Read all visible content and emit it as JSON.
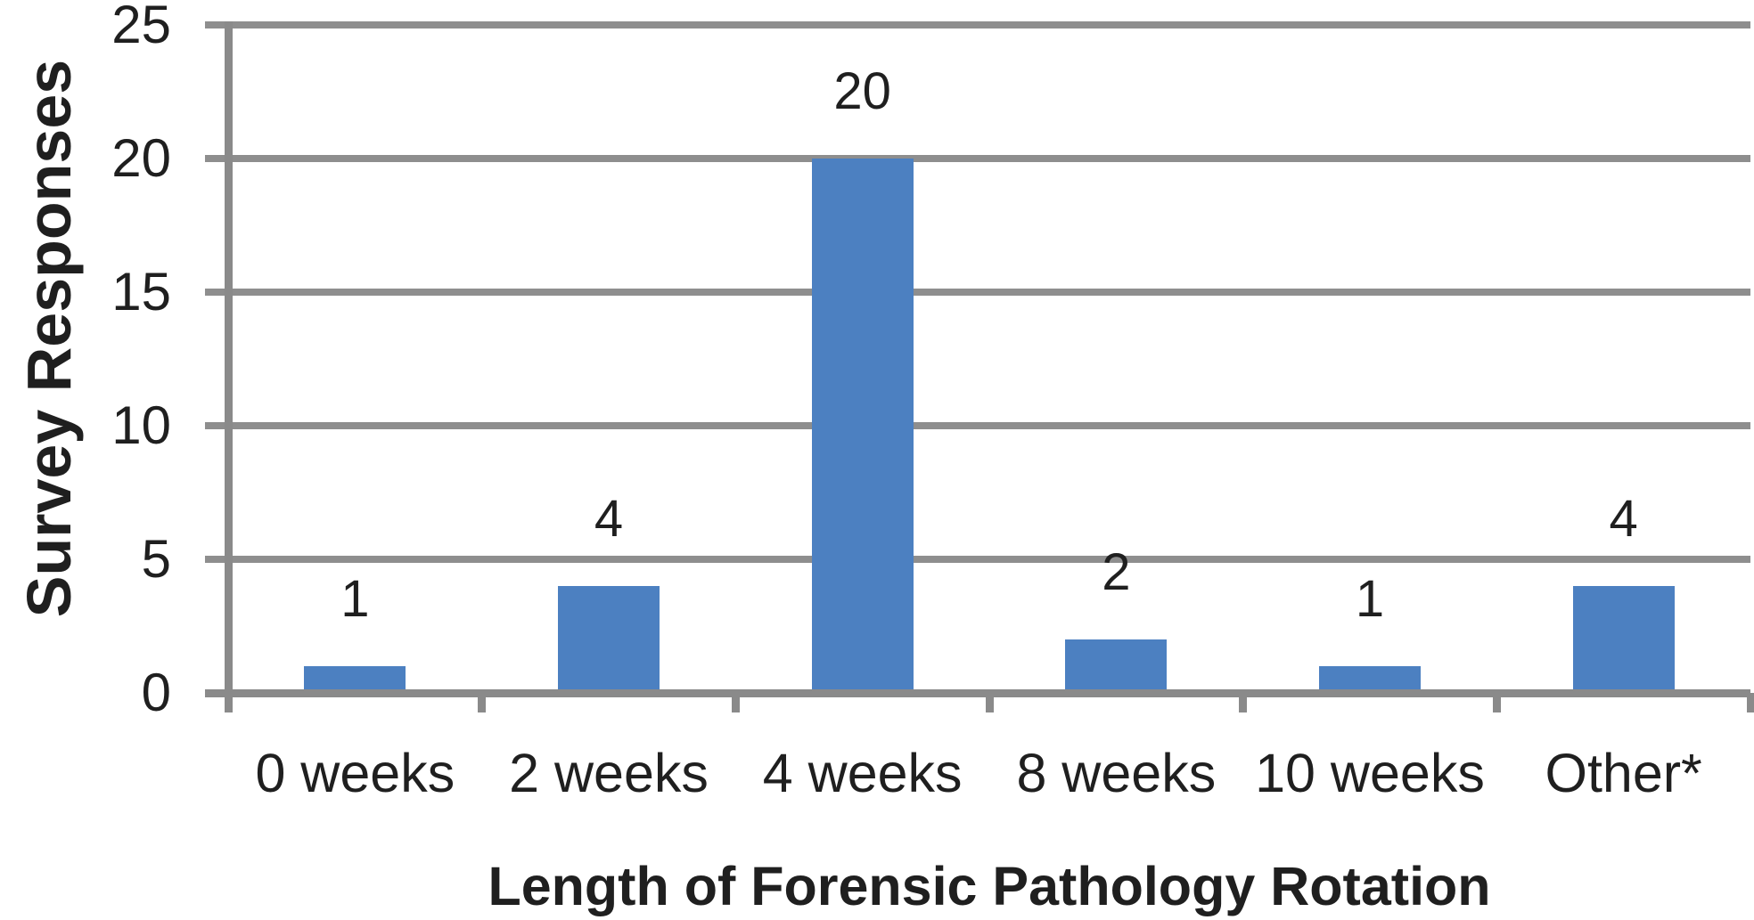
{
  "chart_data": {
    "type": "bar",
    "categories": [
      "0 weeks",
      "2 weeks",
      "4 weeks",
      "8 weeks",
      "10 weeks",
      "Other*"
    ],
    "values": [
      1,
      4,
      20,
      2,
      1,
      4
    ],
    "bar_labels": [
      "1",
      "4",
      "20",
      "2",
      "1",
      "4"
    ],
    "title": "",
    "xlabel": "Length of Forensic Pathology Rotation",
    "ylabel": "Survey Responses",
    "ylim": [
      0,
      25
    ],
    "yticks": [
      0,
      5,
      10,
      15,
      20,
      25
    ],
    "grid": "horizontal-gridlines",
    "legend": "none",
    "colors": {
      "bar": "#4C80C1",
      "gridline": "#8E8E8E",
      "axis": "#8A8A8A",
      "text": "#1F1F1F",
      "background": "#FFFFFF"
    }
  }
}
